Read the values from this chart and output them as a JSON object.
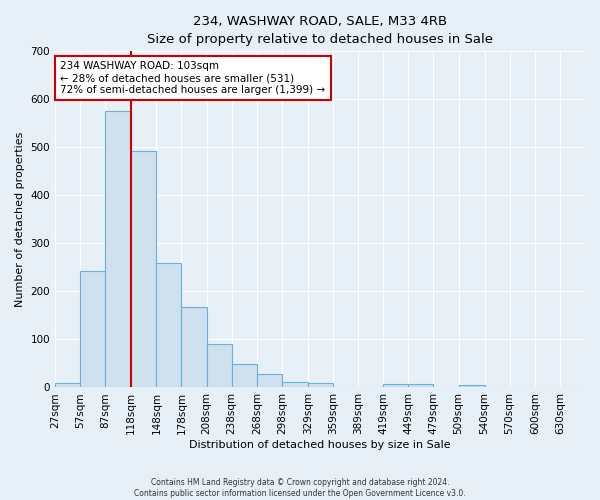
{
  "title": "234, WASHWAY ROAD, SALE, M33 4RB",
  "subtitle": "Size of property relative to detached houses in Sale",
  "xlabel": "Distribution of detached houses by size in Sale",
  "ylabel": "Number of detached properties",
  "bar_color": "#cfe0ef",
  "bar_edge_color": "#6aafd6",
  "bins": [
    "27sqm",
    "57sqm",
    "87sqm",
    "118sqm",
    "148sqm",
    "178sqm",
    "208sqm",
    "238sqm",
    "268sqm",
    "298sqm",
    "329sqm",
    "359sqm",
    "389sqm",
    "419sqm",
    "449sqm",
    "479sqm",
    "509sqm",
    "540sqm",
    "570sqm",
    "600sqm",
    "630sqm"
  ],
  "values": [
    10,
    243,
    575,
    492,
    259,
    168,
    90,
    48,
    27,
    12,
    10,
    0,
    0,
    8,
    8,
    0,
    5,
    0,
    0,
    0,
    0
  ],
  "ylim": [
    0,
    700
  ],
  "yticks": [
    0,
    100,
    200,
    300,
    400,
    500,
    600,
    700
  ],
  "vline_x_bin": 3,
  "annotation_text": "234 WASHWAY ROAD: 103sqm\n← 28% of detached houses are smaller (531)\n72% of semi-detached houses are larger (1,399) →",
  "annotation_box_color": "#ffffff",
  "annotation_box_edge": "#cc0000",
  "vline_color": "#cc0000",
  "footer1": "Contains HM Land Registry data © Crown copyright and database right 2024.",
  "footer2": "Contains public sector information licensed under the Open Government Licence v3.0.",
  "background_color": "#e8f0f7",
  "grid_color": "#ffffff",
  "title_fontsize": 9.5,
  "subtitle_fontsize": 8.5,
  "ylabel_fontsize": 8,
  "xlabel_fontsize": 8,
  "tick_fontsize": 7.5,
  "annotation_fontsize": 7.5,
  "footer_fontsize": 5.5
}
